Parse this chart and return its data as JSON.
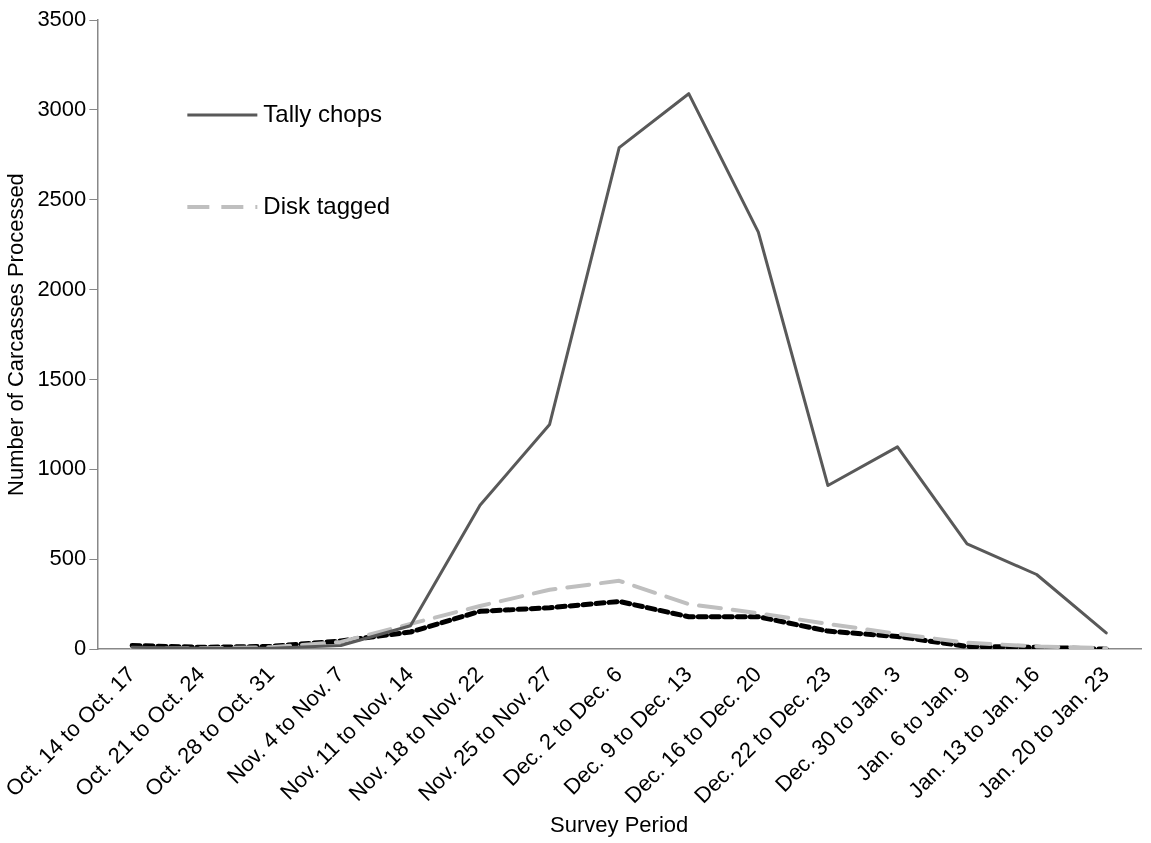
{
  "chart_data": {
    "type": "line",
    "xlabel": "Survey Period",
    "ylabel": "Number of Carcasses Processed",
    "categories": [
      "Oct. 14 to Oct. 17",
      "Oct. 21 to Oct. 24",
      "Oct. 28 to Oct. 31",
      "Nov. 4 to Nov. 7",
      "Nov. 11 to Nov. 14",
      "Nov. 18 to Nov. 22",
      "Nov. 25 to Nov. 27",
      "Dec. 2 to Dec. 6",
      "Dec. 9 to Dec. 13",
      "Dec. 16 to Dec. 20",
      "Dec. 22 to Dec. 23",
      "Dec. 30 to Jan. 3",
      "Jan. 6 to Jan. 9",
      "Jan. 13 to Jan. 16",
      "Jan. 20 to Jan. 23"
    ],
    "series": [
      {
        "name": "Tally chops",
        "color": "#595959",
        "line_style": "solid",
        "values": [
          10,
          5,
          5,
          20,
          130,
          800,
          1250,
          2790,
          3090,
          2320,
          910,
          1125,
          585,
          415,
          90
        ]
      },
      {
        "name": "Disk tagged",
        "color": "#bfbfbf",
        "line_style": "dashed",
        "values": [
          5,
          5,
          10,
          40,
          140,
          240,
          330,
          380,
          250,
          200,
          140,
          85,
          35,
          15,
          5
        ]
      },
      {
        "color": "#000000",
        "line_style": "dotted",
        "values": [
          20,
          10,
          15,
          45,
          95,
          210,
          230,
          265,
          180,
          180,
          100,
          70,
          15,
          10,
          0
        ]
      }
    ],
    "ylim": [
      0,
      3500
    ],
    "yticks": [
      0,
      500,
      1000,
      1500,
      2000,
      2500,
      3000,
      3500
    ],
    "grid": false,
    "legend": "top left",
    "marker": "none"
  }
}
